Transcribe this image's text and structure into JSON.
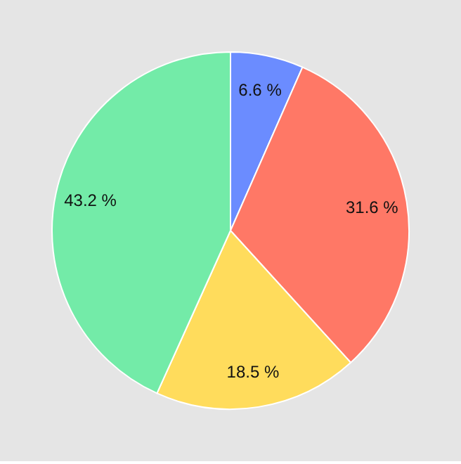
{
  "chart_data": {
    "type": "pie",
    "categories": [
      null,
      null,
      null,
      null
    ],
    "values": [
      6.6,
      31.6,
      18.5,
      43.2
    ],
    "colors": [
      "#6b8cff",
      "#ff7866",
      "#ffdc5c",
      "#73eba8"
    ],
    "value_labels": [
      "6.6 %",
      "31.6 %",
      "18.5 %",
      "43.2 %"
    ],
    "legend": false
  }
}
